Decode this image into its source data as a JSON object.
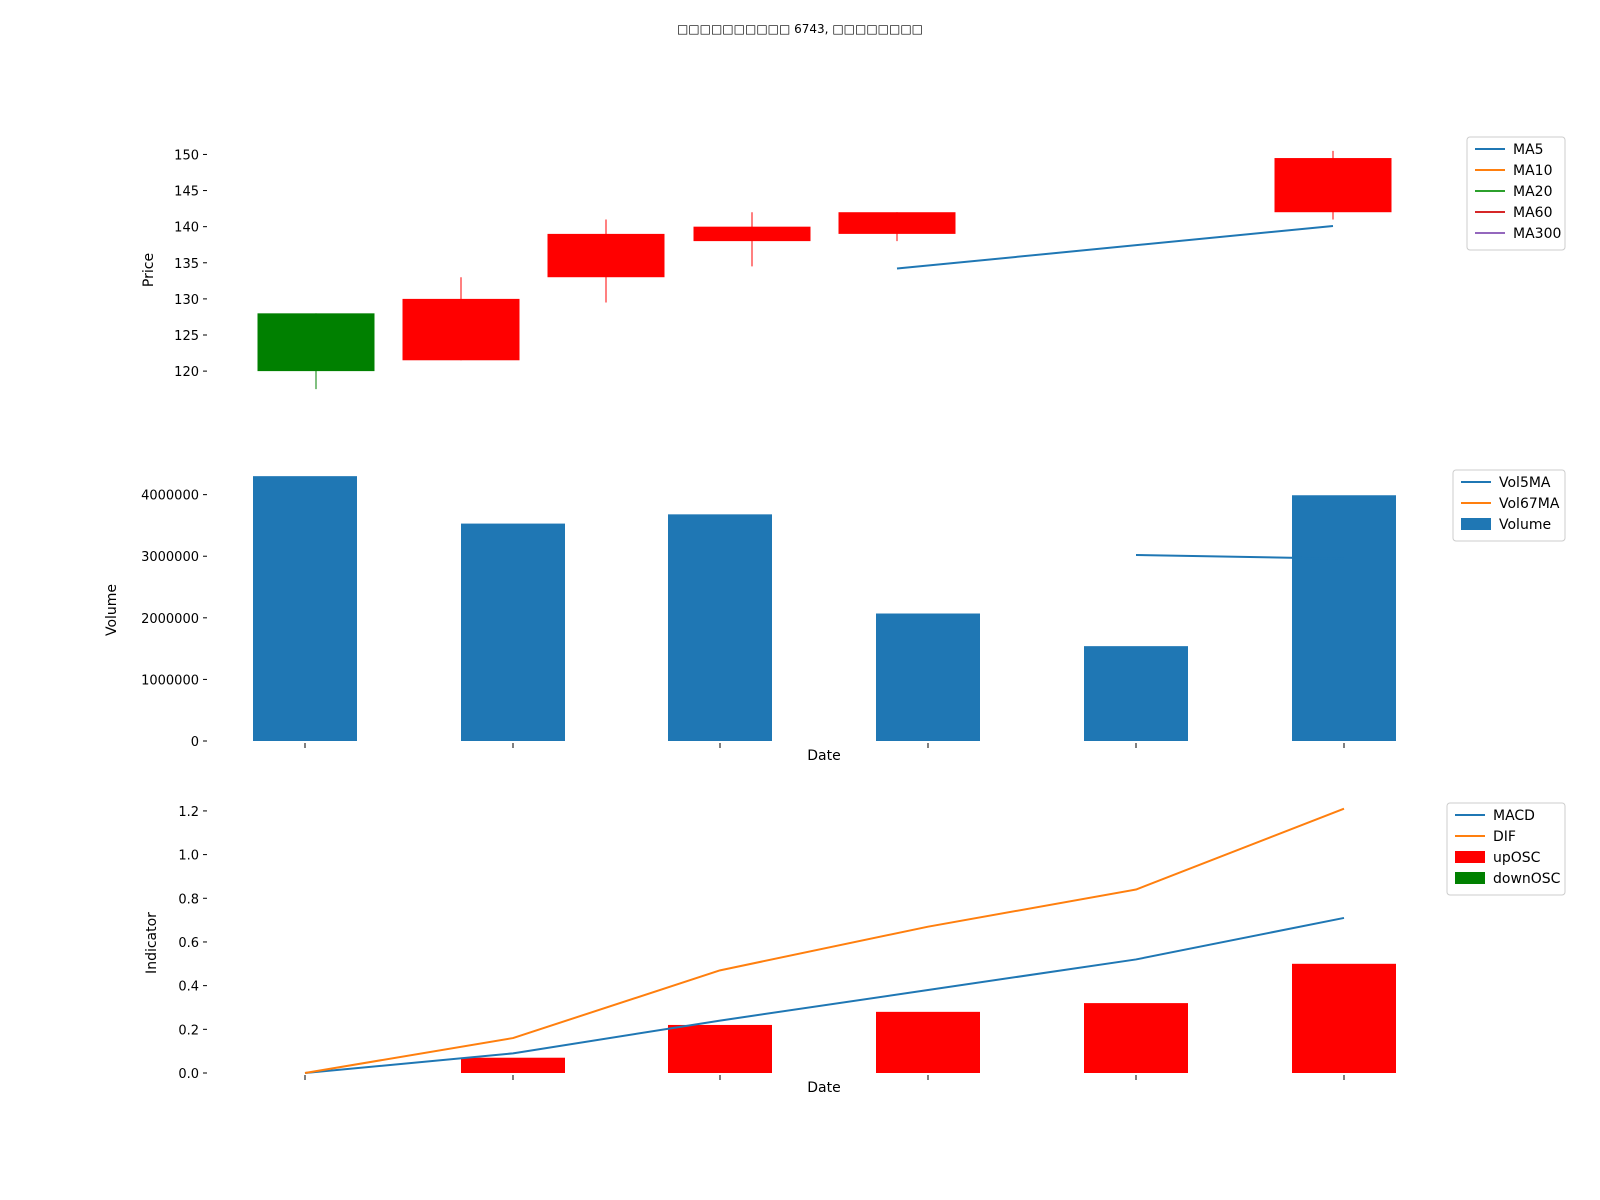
{
  "title": "□□□□□□□□□□ 6743, □□□□□□□□",
  "colors": {
    "up": "#ff0000",
    "down": "#008000",
    "c1": "#1f77b4",
    "c2": "#ff7f0e",
    "c3": "#2ca02c",
    "c4": "#d62728",
    "c5": "#9467bd"
  },
  "chart_data": [
    {
      "type": "candlestick",
      "ylabel": "Price",
      "ylim": [
        116,
        152
      ],
      "yticks": [
        120,
        125,
        130,
        135,
        140,
        145,
        150
      ],
      "grid": false,
      "legend_position": "top-right",
      "legend": [
        "MA5",
        "MA10",
        "MA20",
        "MA60",
        "MA300"
      ],
      "candles": [
        {
          "open": 128.0,
          "close": 120.0,
          "high": 128.0,
          "low": 117.5
        },
        {
          "open": 121.5,
          "close": 130.0,
          "high": 133.0,
          "low": 121.5
        },
        {
          "open": 133.0,
          "close": 139.0,
          "high": 141.0,
          "low": 129.5
        },
        {
          "open": 138.0,
          "close": 140.0,
          "high": 142.0,
          "low": 134.5
        },
        {
          "open": 139.0,
          "close": 142.0,
          "high": 142.0,
          "low": 138.0
        },
        {
          "open": 142.0,
          "close": 149.5,
          "high": 150.5,
          "low": 141.0
        }
      ],
      "series": [
        {
          "name": "MA5",
          "values": [
            null,
            null,
            null,
            null,
            134.2,
            140.1
          ]
        },
        {
          "name": "MA10",
          "values": [
            null,
            null,
            null,
            null,
            null,
            null
          ]
        },
        {
          "name": "MA20",
          "values": [
            null,
            null,
            null,
            null,
            null,
            null
          ]
        },
        {
          "name": "MA60",
          "values": [
            null,
            null,
            null,
            null,
            null,
            null
          ]
        },
        {
          "name": "MA300",
          "values": [
            null,
            null,
            null,
            null,
            null,
            null
          ]
        }
      ]
    },
    {
      "type": "bar",
      "xlabel": "Date",
      "ylabel": "Volume",
      "ylim": [
        0,
        4400000
      ],
      "yticks": [
        0,
        1000000,
        2000000,
        3000000,
        4000000
      ],
      "grid": false,
      "legend_position": "top-right",
      "legend": [
        "Vol5MA",
        "Vol67MA",
        "Volume"
      ],
      "series": [
        {
          "name": "Volume",
          "values": [
            4300000,
            3530000,
            3680000,
            2070000,
            1540000,
            3990000
          ]
        },
        {
          "name": "Vol5MA",
          "values": [
            null,
            null,
            null,
            null,
            3020000,
            2960000
          ]
        },
        {
          "name": "Vol67MA",
          "values": [
            null,
            null,
            null,
            null,
            null,
            null
          ]
        }
      ]
    },
    {
      "type": "bar",
      "xlabel": "Date",
      "ylabel": "Indicator",
      "ylim": [
        0,
        1.25
      ],
      "yticks": [
        0.0,
        0.2,
        0.4,
        0.6,
        0.8,
        1.0,
        1.2
      ],
      "grid": false,
      "legend_position": "top-right",
      "legend": [
        "MACD",
        "DIF",
        "upOSC",
        "downOSC"
      ],
      "series": [
        {
          "name": "MACD",
          "values": [
            0.0,
            0.09,
            0.24,
            0.38,
            0.52,
            0.71
          ]
        },
        {
          "name": "DIF",
          "values": [
            0.0,
            0.16,
            0.47,
            0.67,
            0.84,
            1.21
          ]
        },
        {
          "name": "upOSC",
          "values": [
            0.0,
            0.07,
            0.22,
            0.28,
            0.32,
            0.5
          ]
        },
        {
          "name": "downOSC",
          "values": [
            null,
            null,
            null,
            null,
            null,
            null
          ]
        }
      ]
    }
  ]
}
